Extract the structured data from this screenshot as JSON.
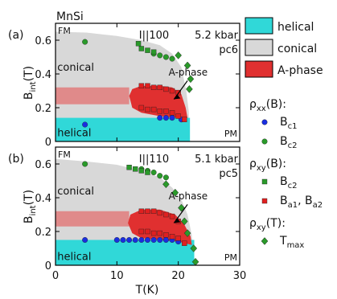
{
  "figure": {
    "material": "MnSi",
    "xlabel": "T(K)",
    "ylabel_main": "B",
    "ylabel_sub": "int",
    "ylabel_tail": "(T)"
  },
  "legend": {
    "phases": [
      {
        "label": "helical",
        "color": "#30d8d8"
      },
      {
        "label": "conical",
        "color": "#d8d8d8"
      },
      {
        "label": "A-phase",
        "color": "#e03030"
      }
    ],
    "groups": [
      {
        "heading_main": "ρ",
        "heading_sub": "xx",
        "heading_tail": "(B):",
        "items": [
          {
            "marker": "circle",
            "color": "#1a2ee0",
            "main": "B",
            "sub": "c1"
          },
          {
            "marker": "circle",
            "color": "#2a9a2a",
            "main": "B",
            "sub": "c2"
          }
        ]
      },
      {
        "heading_main": "ρ",
        "heading_sub": "xy",
        "heading_tail": "(B):",
        "items": [
          {
            "marker": "square",
            "color": "#2a9a2a",
            "main": "B",
            "sub": "c2"
          },
          {
            "marker": "square",
            "color": "#e02020",
            "main": "B",
            "sub": "a1",
            "main2": "B",
            "sub2": "a2"
          }
        ]
      },
      {
        "heading_main": "ρ",
        "heading_sub": "xy",
        "heading_tail": "(T):",
        "items": [
          {
            "marker": "diamond",
            "color": "#2a9a2a",
            "main": "T",
            "sub": "max"
          }
        ]
      }
    ]
  },
  "chart_data": [
    {
      "type": "scatter",
      "panel_label": "(a)",
      "orientation": "I||100",
      "pressure": "5.2 kbar",
      "sample": "pc6",
      "region_labels": {
        "fm": "FM",
        "pm": "PM",
        "conical": "conical",
        "helical": "helical",
        "aphase": "A-phase"
      },
      "xlim": [
        0,
        30
      ],
      "ylim": [
        0,
        0.7
      ],
      "xticks": [
        0,
        10,
        20,
        30
      ],
      "yticks": [
        0,
        0.2,
        0.4,
        0.6
      ],
      "tick_labels": {
        "y": [
          "0",
          "0.2",
          "0.4",
          "0.6"
        ]
      },
      "regions": {
        "conical_upper": [
          [
            0,
            0.65
          ],
          [
            5,
            0.645
          ],
          [
            10,
            0.625
          ],
          [
            14,
            0.6
          ],
          [
            17,
            0.57
          ],
          [
            19,
            0.52
          ],
          [
            20.5,
            0.44
          ],
          [
            21.3,
            0.3
          ],
          [
            21.7,
            0.18
          ],
          [
            21.9,
            0
          ]
        ],
        "helical_top": 0.14,
        "aphase_band": [
          [
            0,
            0.22
          ],
          [
            12,
            0.22
          ],
          [
            12,
            0.32
          ],
          [
            0,
            0.32
          ]
        ],
        "aphase": [
          [
            12,
            0.27
          ],
          [
            12.5,
            0.31
          ],
          [
            14,
            0.33
          ],
          [
            17,
            0.33
          ],
          [
            19,
            0.32
          ],
          [
            20.5,
            0.28
          ],
          [
            21.2,
            0.2
          ],
          [
            21.5,
            0.14
          ],
          [
            20,
            0.14
          ],
          [
            17,
            0.15
          ],
          [
            14,
            0.17
          ],
          [
            12.5,
            0.2
          ]
        ]
      },
      "series": [
        {
          "marker": "circle",
          "color": "#1a2ee0",
          "points": [
            [
              4.8,
              0.1
            ],
            [
              17,
              0.14
            ],
            [
              18,
              0.14
            ],
            [
              19,
              0.14
            ],
            [
              20.5,
              0.13
            ]
          ]
        },
        {
          "marker": "circle",
          "color": "#2a9a2a",
          "points": [
            [
              4.8,
              0.59
            ],
            [
              16,
              0.52
            ],
            [
              17,
              0.51
            ],
            [
              18,
              0.5
            ],
            [
              19,
              0.49
            ]
          ]
        },
        {
          "marker": "square",
          "color": "#2a9a2a",
          "points": [
            [
              13.5,
              0.58
            ],
            [
              14,
              0.55
            ],
            [
              15,
              0.54
            ],
            [
              16,
              0.53
            ]
          ]
        },
        {
          "marker": "square",
          "color": "#e02020",
          "points": [
            [
              14,
              0.33
            ],
            [
              15,
              0.33
            ],
            [
              16,
              0.32
            ],
            [
              17,
              0.32
            ],
            [
              18,
              0.31
            ],
            [
              19,
              0.3
            ],
            [
              20,
              0.29
            ],
            [
              14,
              0.2
            ],
            [
              15,
              0.19
            ],
            [
              16,
              0.19
            ],
            [
              17,
              0.18
            ],
            [
              18,
              0.18
            ],
            [
              19,
              0.17
            ],
            [
              20,
              0.15
            ],
            [
              21,
              0.13
            ]
          ]
        },
        {
          "marker": "diamond",
          "color": "#2a9a2a",
          "points": [
            [
              20,
              0.51
            ],
            [
              21.5,
              0.45
            ],
            [
              22,
              0.37
            ],
            [
              21.8,
              0.31
            ]
          ]
        }
      ]
    },
    {
      "type": "scatter",
      "panel_label": "(b)",
      "orientation": "I||110",
      "pressure": "5.1 kbar",
      "sample": "pc5",
      "region_labels": {
        "fm": "FM",
        "pm": "PM",
        "conical": "conical",
        "helical": "helical",
        "aphase": "A-phase"
      },
      "xlim": [
        0,
        30
      ],
      "ylim": [
        0,
        0.7
      ],
      "xticks": [
        0,
        10,
        20,
        30
      ],
      "yticks": [
        0,
        0.2,
        0.4,
        0.6
      ],
      "tick_labels": {
        "x": [
          "0",
          "10",
          "20",
          "30"
        ],
        "y": [
          "0",
          "0.2",
          "0.4",
          "0.6"
        ]
      },
      "regions": {
        "conical_upper": [
          [
            0,
            0.63
          ],
          [
            5,
            0.615
          ],
          [
            10,
            0.595
          ],
          [
            14,
            0.56
          ],
          [
            17,
            0.52
          ],
          [
            19,
            0.46
          ],
          [
            20.5,
            0.39
          ],
          [
            21.5,
            0.3
          ],
          [
            22.2,
            0.18
          ],
          [
            22.6,
            0
          ]
        ],
        "helical_top": 0.15,
        "aphase_band": [
          [
            0,
            0.23
          ],
          [
            12,
            0.23
          ],
          [
            12,
            0.32
          ],
          [
            0,
            0.32
          ]
        ],
        "aphase": [
          [
            11.8,
            0.25
          ],
          [
            12.2,
            0.3
          ],
          [
            14,
            0.33
          ],
          [
            17,
            0.33
          ],
          [
            19.5,
            0.3
          ],
          [
            21,
            0.24
          ],
          [
            22,
            0.17
          ],
          [
            22.2,
            0.12
          ],
          [
            20,
            0.14
          ],
          [
            17,
            0.15
          ],
          [
            14,
            0.16
          ],
          [
            12.5,
            0.19
          ]
        ]
      },
      "series": [
        {
          "marker": "circle",
          "color": "#1a2ee0",
          "points": [
            [
              4.8,
              0.15
            ],
            [
              10,
              0.15
            ],
            [
              11,
              0.15
            ],
            [
              12,
              0.15
            ],
            [
              13,
              0.15
            ],
            [
              14,
              0.15
            ],
            [
              15,
              0.15
            ],
            [
              16,
              0.15
            ],
            [
              17,
              0.15
            ],
            [
              18,
              0.15
            ],
            [
              19,
              0.15
            ],
            [
              20,
              0.14
            ]
          ]
        },
        {
          "marker": "circle",
          "color": "#2a9a2a",
          "points": [
            [
              4.8,
              0.6
            ],
            [
              14,
              0.57
            ],
            [
              15,
              0.56
            ],
            [
              16,
              0.55
            ],
            [
              17,
              0.53
            ],
            [
              18,
              0.52
            ]
          ]
        },
        {
          "marker": "square",
          "color": "#2a9a2a",
          "points": [
            [
              12,
              0.58
            ],
            [
              13,
              0.57
            ],
            [
              14,
              0.56
            ],
            [
              15,
              0.55
            ]
          ]
        },
        {
          "marker": "square",
          "color": "#e02020",
          "points": [
            [
              14,
              0.32
            ],
            [
              15,
              0.32
            ],
            [
              16,
              0.32
            ],
            [
              17,
              0.31
            ],
            [
              18,
              0.3
            ],
            [
              19,
              0.29
            ],
            [
              20,
              0.26
            ],
            [
              14,
              0.2
            ],
            [
              15,
              0.2
            ],
            [
              16,
              0.19
            ],
            [
              17,
              0.19
            ],
            [
              18,
              0.18
            ],
            [
              19,
              0.17
            ],
            [
              20,
              0.16
            ],
            [
              21,
              0.13
            ]
          ]
        },
        {
          "marker": "diamond",
          "color": "#2a9a2a",
          "points": [
            [
              18,
              0.48
            ],
            [
              19.5,
              0.43
            ],
            [
              20.5,
              0.34
            ],
            [
              21,
              0.26
            ],
            [
              21.5,
              0.19
            ],
            [
              22.5,
              0.1
            ],
            [
              22.8,
              0.02
            ]
          ]
        }
      ]
    }
  ]
}
